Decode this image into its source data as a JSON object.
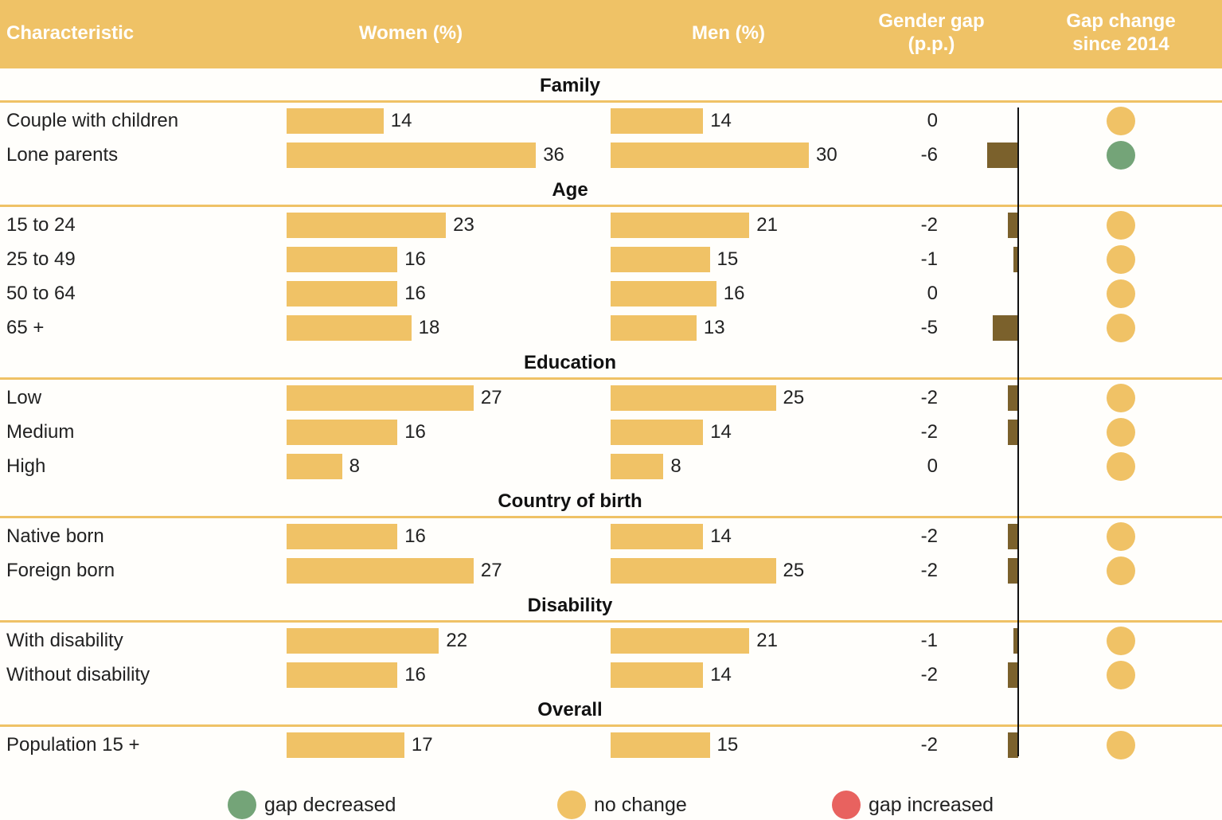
{
  "header": {
    "characteristic": "Characteristic",
    "women": "Women (%)",
    "men": "Men (%)",
    "gap_line1": "Gender gap",
    "gap_line2": "(p.p.)",
    "change_line1": "Gap change",
    "change_line2": "since 2014"
  },
  "colors": {
    "header": "#efc266",
    "bar": "#f0c266",
    "gap_bar": "#7b612c",
    "decreased": "#74a478",
    "no_change": "#f0c266",
    "increased": "#e8625f"
  },
  "legend": [
    {
      "key": "decreased",
      "label": "gap decreased"
    },
    {
      "key": "no_change",
      "label": "no change"
    },
    {
      "key": "increased",
      "label": "gap increased"
    }
  ],
  "chart_data": {
    "type": "table",
    "columns": [
      "Characteristic",
      "Women (%)",
      "Men (%)",
      "Gender gap (p.p.)",
      "Gap change since 2014"
    ],
    "sections": [
      {
        "title": "Family",
        "rows": [
          {
            "label": "Couple with children",
            "women": 14,
            "men": 14,
            "gap": 0,
            "change": "no_change"
          },
          {
            "label": "Lone parents",
            "women": 36,
            "men": 30,
            "gap": -6,
            "change": "decreased"
          }
        ]
      },
      {
        "title": "Age",
        "rows": [
          {
            "label": "15 to 24",
            "women": 23,
            "men": 21,
            "gap": -2,
            "change": "no_change"
          },
          {
            "label": "25 to 49",
            "women": 16,
            "men": 15,
            "gap": -1,
            "change": "no_change"
          },
          {
            "label": "50 to 64",
            "women": 16,
            "men": 16,
            "gap": 0,
            "change": "no_change"
          },
          {
            "label": "65 +",
            "women": 18,
            "men": 13,
            "gap": -5,
            "change": "no_change"
          }
        ]
      },
      {
        "title": "Education",
        "rows": [
          {
            "label": "Low",
            "women": 27,
            "men": 25,
            "gap": -2,
            "change": "no_change"
          },
          {
            "label": "Medium",
            "women": 16,
            "men": 14,
            "gap": -2,
            "change": "no_change"
          },
          {
            "label": "High",
            "women": 8,
            "men": 8,
            "gap": 0,
            "change": "no_change"
          }
        ]
      },
      {
        "title": "Country of birth",
        "rows": [
          {
            "label": "Native born",
            "women": 16,
            "men": 14,
            "gap": -2,
            "change": "no_change"
          },
          {
            "label": "Foreign born",
            "women": 27,
            "men": 25,
            "gap": -2,
            "change": "no_change"
          }
        ]
      },
      {
        "title": "Disability",
        "rows": [
          {
            "label": "With disability",
            "women": 22,
            "men": 21,
            "gap": -1,
            "change": "no_change"
          },
          {
            "label": "Without disability",
            "women": 16,
            "men": 14,
            "gap": -2,
            "change": "no_change"
          }
        ]
      },
      {
        "title": "Overall",
        "rows": [
          {
            "label": "Population 15 +",
            "women": 17,
            "men": 15,
            "gap": -2,
            "change": "no_change"
          }
        ]
      }
    ]
  }
}
